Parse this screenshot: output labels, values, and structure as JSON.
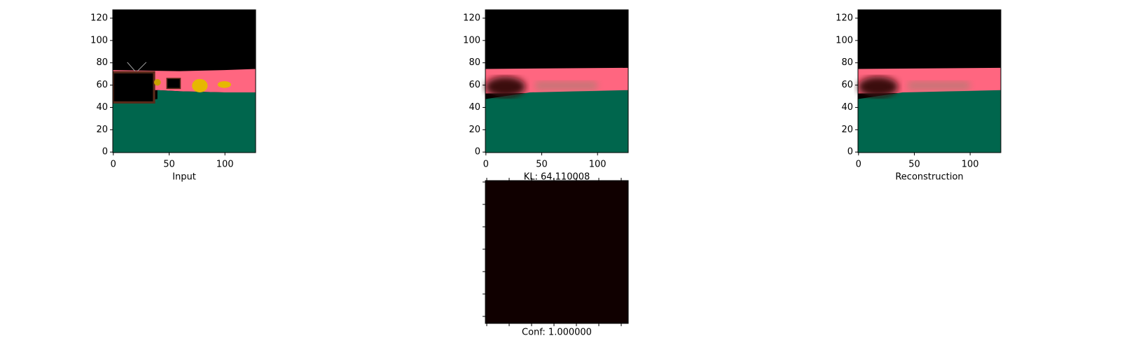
{
  "panels": [
    {
      "xlabel": "Input",
      "xlim": [
        -0.5,
        127.5
      ],
      "ylim": [
        127.5,
        -0.5
      ],
      "xticks": [
        0,
        50,
        100
      ],
      "yticks": [
        0,
        20,
        40,
        60,
        80,
        100,
        120
      ]
    },
    {
      "xlabel": "KL: 64.110008",
      "xlim": [
        -0.5,
        127.5
      ],
      "ylim": [
        127.5,
        -0.5
      ],
      "xticks": [
        0,
        50,
        100
      ],
      "yticks": [
        0,
        20,
        40,
        60,
        80,
        100,
        120
      ]
    },
    {
      "xlabel": "Reconstruction",
      "xlim": [
        -0.5,
        127.5
      ],
      "ylim": [
        127.5,
        -0.5
      ],
      "xticks": [
        0,
        50,
        100
      ],
      "yticks": [
        0,
        20,
        40,
        60,
        80,
        100,
        120
      ]
    },
    {
      "xlabel": "Conf: 1.000000"
    }
  ]
}
